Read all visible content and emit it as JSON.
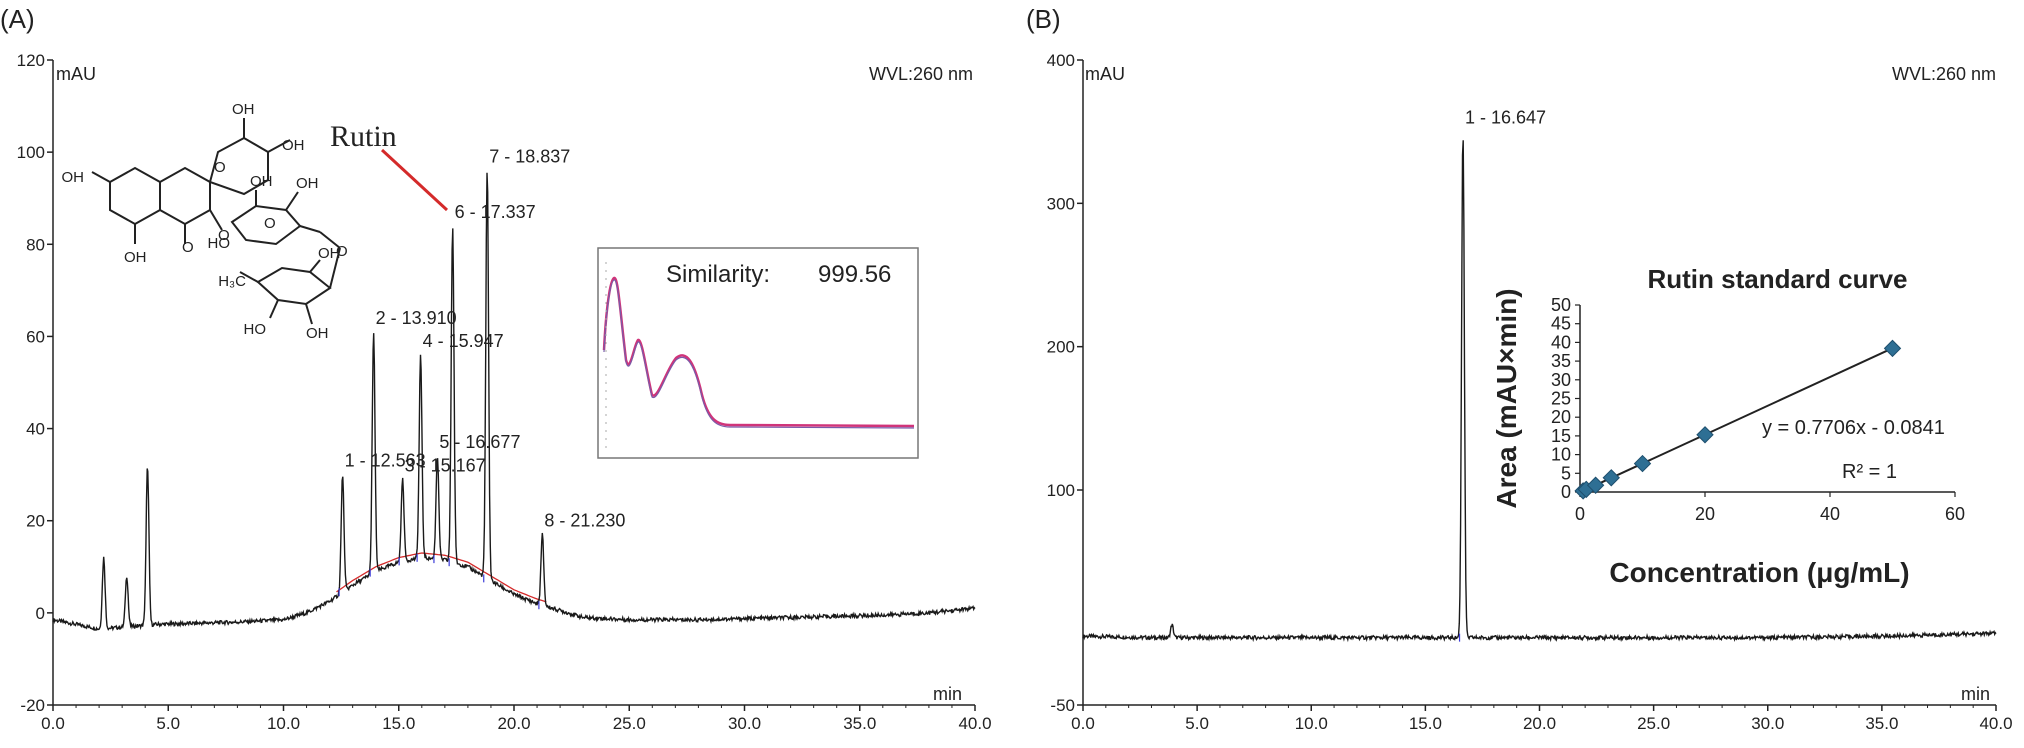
{
  "panels": {
    "a": {
      "label": "(A)",
      "units_label": "mAU",
      "x_unit": "min",
      "wvl": "WVL:260 nm",
      "compound": "Rutin",
      "similarity_label": "Similarity:",
      "similarity_value": "999.56",
      "structure_labels": [
        "OH",
        "OH",
        "OH",
        "OH",
        "O",
        "O",
        "O",
        "O",
        "O",
        "H₃C",
        "OH",
        "OH",
        "OH",
        "HO",
        "HO",
        "OH"
      ]
    },
    "b": {
      "label": "(B)",
      "units_label": "mAU",
      "x_unit": "min",
      "wvl": "WVL:260 nm"
    }
  },
  "chart_data": [
    {
      "type": "line",
      "panel": "A",
      "xlabel": "min",
      "ylabel": "mAU",
      "xlim": [
        0,
        40
      ],
      "ylim": [
        -20,
        120
      ],
      "x_ticks": [
        "0.0",
        "5.0",
        "10.0",
        "15.0",
        "20.0",
        "25.0",
        "30.0",
        "35.0",
        "40.0"
      ],
      "y_ticks": [
        "-20",
        "0",
        "20",
        "40",
        "60",
        "80",
        "100",
        "120"
      ],
      "baseline": [
        [
          0,
          -1.5
        ],
        [
          2,
          -3.5
        ],
        [
          4.5,
          -2.5
        ],
        [
          8,
          -2
        ],
        [
          10,
          -1.5
        ],
        [
          11,
          0
        ],
        [
          12,
          2.5
        ],
        [
          13,
          6
        ],
        [
          14,
          9
        ],
        [
          15,
          11
        ],
        [
          16,
          12
        ],
        [
          17,
          11.5
        ],
        [
          18,
          10
        ],
        [
          19,
          7
        ],
        [
          20,
          4
        ],
        [
          21,
          2
        ],
        [
          22,
          0.5
        ],
        [
          23,
          -1
        ],
        [
          25,
          -1.5
        ],
        [
          28,
          -1.5
        ],
        [
          32,
          -1
        ],
        [
          36,
          -0.5
        ],
        [
          38,
          0
        ],
        [
          40,
          1
        ]
      ],
      "peaks": [
        {
          "label": "1 - 12.563",
          "x": 12.563,
          "y": 30
        },
        {
          "label": "2 - 13.910",
          "x": 13.91,
          "y": 61
        },
        {
          "label": "3 - 15.167",
          "x": 15.167,
          "y": 29
        },
        {
          "label": "4 - 15.947",
          "x": 15.947,
          "y": 56
        },
        {
          "label": "5 - 16.677",
          "x": 16.677,
          "y": 34
        },
        {
          "label": "6 - 17.337",
          "x": 17.337,
          "y": 84
        },
        {
          "label": "7 - 18.837",
          "x": 18.837,
          "y": 96
        },
        {
          "label": "8 - 21.230",
          "x": 21.23,
          "y": 17
        }
      ],
      "minor_peaks": [
        {
          "x": 2.2,
          "y": 12
        },
        {
          "x": 3.2,
          "y": 8
        },
        {
          "x": 4.1,
          "y": 32
        }
      ]
    },
    {
      "type": "line",
      "panel": "B",
      "xlabel": "min",
      "ylabel": "mAU",
      "xlim": [
        0,
        40
      ],
      "ylim": [
        -50,
        400
      ],
      "x_ticks": [
        "0.0",
        "5.0",
        "10.0",
        "15.0",
        "20.0",
        "25.0",
        "30.0",
        "35.0",
        "40.0"
      ],
      "y_ticks": [
        "-50",
        "100",
        "200",
        "300",
        "400"
      ],
      "baseline": [
        [
          0,
          -2
        ],
        [
          3,
          -3
        ],
        [
          10,
          -3
        ],
        [
          16,
          -3
        ],
        [
          18,
          -3
        ],
        [
          25,
          -3
        ],
        [
          30,
          -3
        ],
        [
          35,
          -2
        ],
        [
          40,
          0
        ]
      ],
      "peaks": [
        {
          "label": "1 - 16.647",
          "x": 16.647,
          "y": 350
        }
      ],
      "minor_peaks": [
        {
          "x": 3.9,
          "y": 6
        }
      ]
    },
    {
      "type": "scatter",
      "panel": "B-inset",
      "title": "Rutin standard curve",
      "xlabel": "Concentration (μg/mL)",
      "ylabel": "Area (mAU×min)",
      "xlim": [
        0,
        60
      ],
      "ylim": [
        0,
        50
      ],
      "x_ticks": [
        "0",
        "20",
        "40",
        "60"
      ],
      "y_ticks": [
        "0",
        "5",
        "10",
        "15",
        "20",
        "25",
        "30",
        "35",
        "40",
        "45",
        "50"
      ],
      "points": [
        [
          0.5,
          0.3
        ],
        [
          1,
          0.7
        ],
        [
          2.5,
          1.8
        ],
        [
          5,
          3.8
        ],
        [
          10,
          7.6
        ],
        [
          20,
          15.3
        ],
        [
          50,
          38.4
        ]
      ],
      "fit": {
        "slope": 0.7706,
        "intercept": -0.0841
      },
      "equation": "y = 0.7706x - 0.0841",
      "r2": "R² = 1",
      "colors": {
        "marker": "#2e6f94",
        "fit_line": "#222222"
      }
    }
  ],
  "colors": {
    "trace": "#1a1a1a",
    "baseline_marker": "#3b3bd8",
    "rutin_arrow": "#d42a2a",
    "spectrum": "#d0347a",
    "spectrum_2": "#7a5aa8"
  }
}
